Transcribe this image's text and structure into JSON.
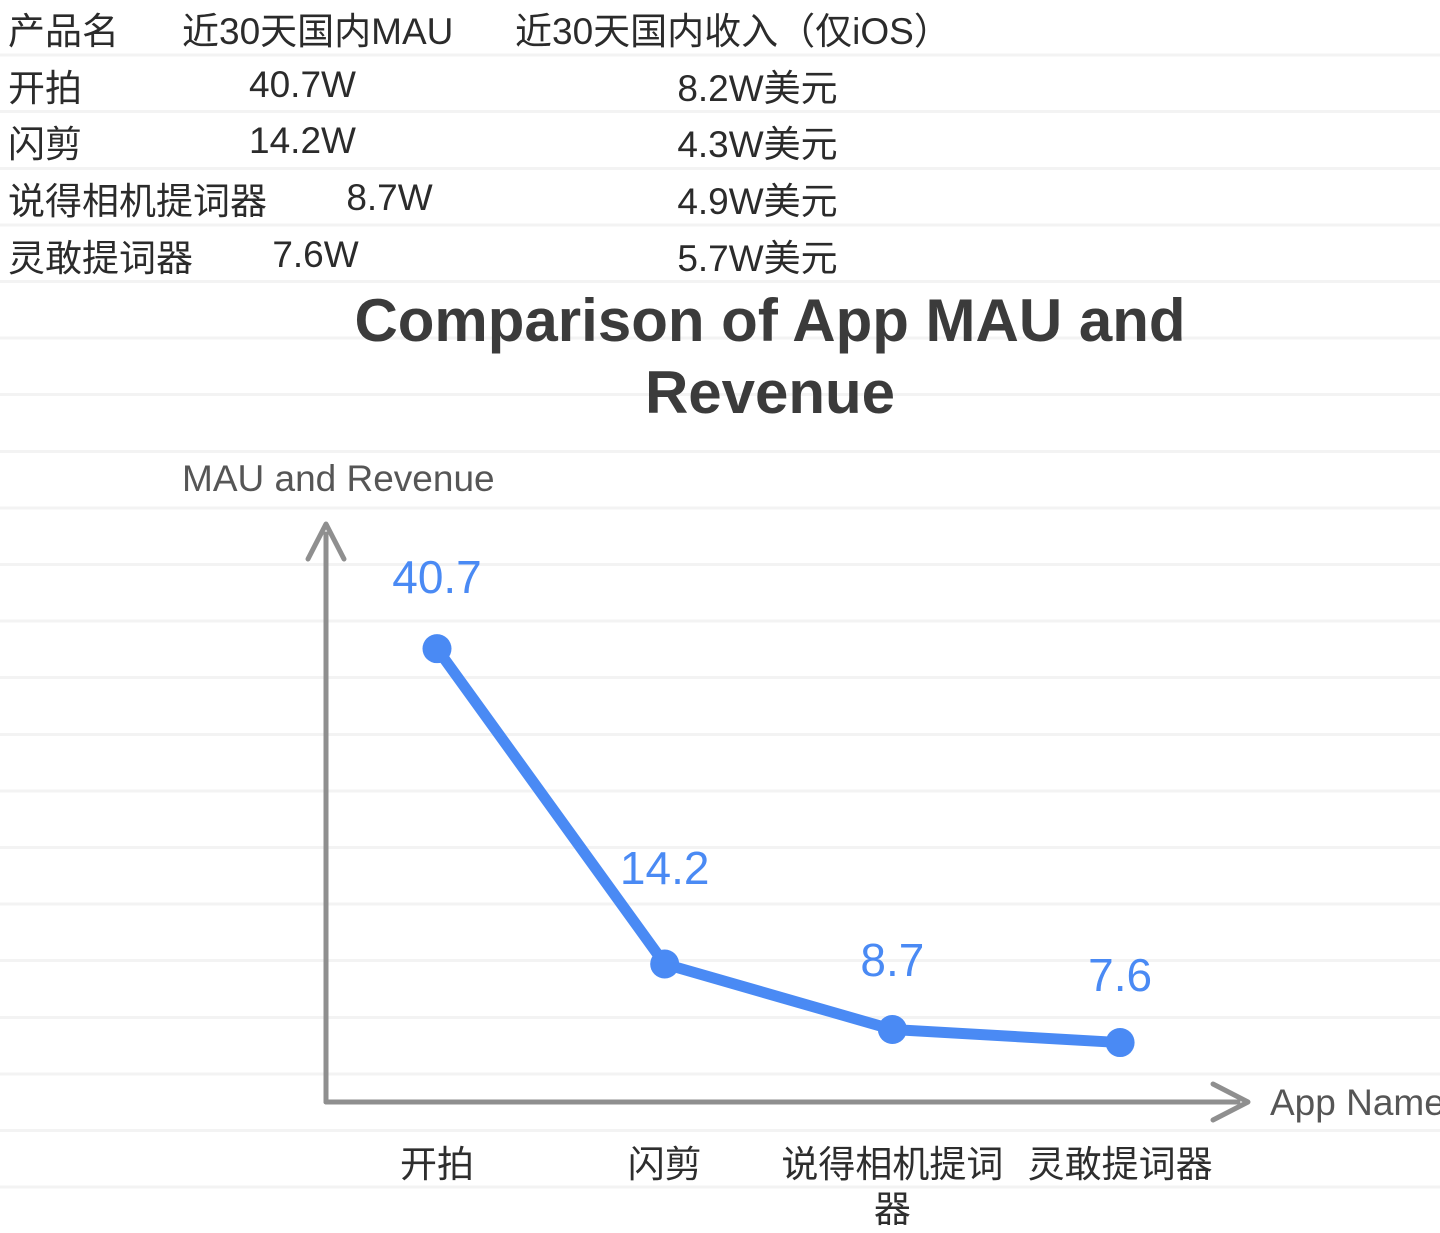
{
  "table": {
    "headers": [
      "产品名",
      "近30天国内MAU",
      "近30天国内收入（仅iOS）"
    ],
    "rows": [
      {
        "name": "开拍",
        "mau": "40.7W",
        "revenue": "8.2W美元"
      },
      {
        "name": "闪剪",
        "mau": "14.2W",
        "revenue": "4.3W美元"
      },
      {
        "name": "说得相机提词器",
        "mau": "8.7W",
        "revenue": "4.9W美元"
      },
      {
        "name": "灵敢提词器",
        "mau": "7.6W",
        "revenue": "5.7W美元"
      }
    ]
  },
  "chart": {
    "title_lines": [
      "Comparison of App MAU and",
      "Revenue"
    ]
  },
  "chart_data": {
    "type": "line",
    "title": "Comparison of App MAU and Revenue",
    "xlabel": "App Name",
    "ylabel": "MAU and Revenue",
    "categories": [
      "开拍",
      "闪剪",
      "说得相机提词器",
      "灵敢提词器"
    ],
    "values": [
      40.7,
      14.2,
      8.7,
      7.6
    ],
    "point_labels": [
      "40.7",
      "14.2",
      "8.7",
      "7.6"
    ],
    "ylim": [
      0,
      49
    ],
    "grid": "faint horizontal lines",
    "legend": "none",
    "colors": {
      "line_blue": "#4a8af4",
      "axis_gray": "#8f8f8f",
      "label_gray": "#565656",
      "gridline": "#f3f3f3",
      "title_dark": "#3b3b3b"
    }
  }
}
